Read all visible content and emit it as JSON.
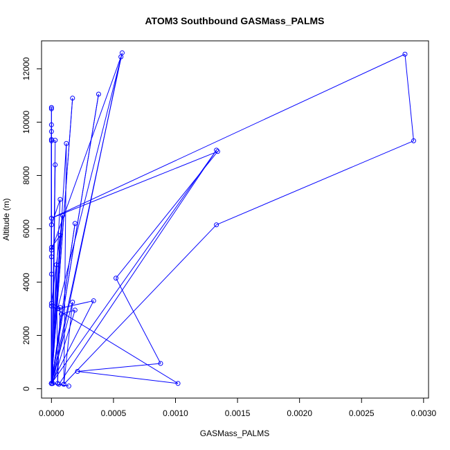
{
  "chart_data": {
    "type": "line",
    "title": "ATOM3 Southbound GASMass_PALMS",
    "xlabel": "GASMass_PALMS",
    "ylabel": "Altitude (m)",
    "xlim": [
      -8e-05,
      0.00304
    ],
    "ylim": [
      -350,
      13050
    ],
    "xticks": [
      0.0,
      0.0005,
      0.001,
      0.0015,
      0.002,
      0.0025,
      0.003
    ],
    "xtick_labels": [
      "0.0000",
      "0.0005",
      "0.0010",
      "0.0015",
      "0.0020",
      "0.0025",
      "0.0030"
    ],
    "yticks": [
      0,
      2000,
      4000,
      6000,
      8000,
      10000,
      12000
    ],
    "ytick_labels": [
      "0",
      "2000",
      "4000",
      "6000",
      "8000",
      "10000",
      "12000"
    ],
    "grid": false,
    "legend": "none",
    "marker": "open-circle",
    "color": "#0000ff",
    "series": [
      {
        "points": [
          [
            0.0,
            200
          ],
          [
            0.0,
            10500
          ],
          [
            0.0,
            10550
          ],
          [
            0.0,
            200
          ],
          [
            0.0,
            9900
          ],
          [
            0.0,
            200
          ],
          [
            0.0,
            9650
          ],
          [
            0.0,
            200
          ],
          [
            0.0,
            9350
          ],
          [
            0.0,
            200
          ],
          [
            0.0,
            9300
          ],
          [
            3e-05,
            9320
          ],
          [
            1e-05,
            200
          ],
          [
            3e-05,
            8400
          ],
          [
            0.0,
            200
          ],
          [
            7e-05,
            7100
          ],
          [
            0.0,
            6150
          ],
          [
            0.0,
            200
          ],
          [
            7e-05,
            5750
          ],
          [
            0.0,
            5300
          ],
          [
            0.0,
            200
          ],
          [
            0.0,
            4950
          ],
          [
            0.0,
            4300
          ],
          [
            0.0,
            200
          ],
          [
            4e-05,
            4650
          ],
          [
            5e-05,
            200
          ],
          [
            7e-05,
            3050
          ],
          [
            0.0,
            3200
          ],
          [
            9e-05,
            6500
          ],
          [
            0.0,
            200
          ],
          [
            0.00017,
            10900
          ],
          [
            0.0,
            200
          ],
          [
            0.00019,
            6200
          ],
          [
            0.0,
            200
          ],
          [
            0.00038,
            11050
          ],
          [
            0.0,
            200
          ],
          [
            0.00057,
            12600
          ],
          [
            5e-05,
            3000
          ],
          [
            0.00034,
            3300
          ],
          [
            0.0,
            200
          ],
          [
            0.00012,
            9200
          ],
          [
            0.0001,
            170
          ],
          [
            0.00017,
            3250
          ],
          [
            0.0,
            200
          ],
          [
            8e-05,
            2800
          ],
          [
            0.00019,
            2950
          ],
          [
            1e-05,
            200
          ],
          [
            0.00056,
            12450
          ],
          [
            0.0,
            5200
          ],
          [
            0.0,
            200
          ],
          [
            0.00133,
            8950
          ],
          [
            6e-05,
            170
          ],
          [
            0.00014,
            100
          ],
          [
            0.0,
            200
          ],
          [
            0.0,
            3100
          ],
          [
            0.00102,
            200
          ],
          [
            0.00021,
            650
          ],
          [
            0.00088,
            950
          ],
          [
            0.00052,
            4150
          ],
          [
            0.00134,
            8900
          ],
          [
            0.0,
            6400
          ],
          [
            0.00285,
            12550
          ],
          [
            0.00292,
            9300
          ],
          [
            0.00133,
            6150
          ],
          [
            0.0001,
            170
          ]
        ]
      }
    ]
  }
}
